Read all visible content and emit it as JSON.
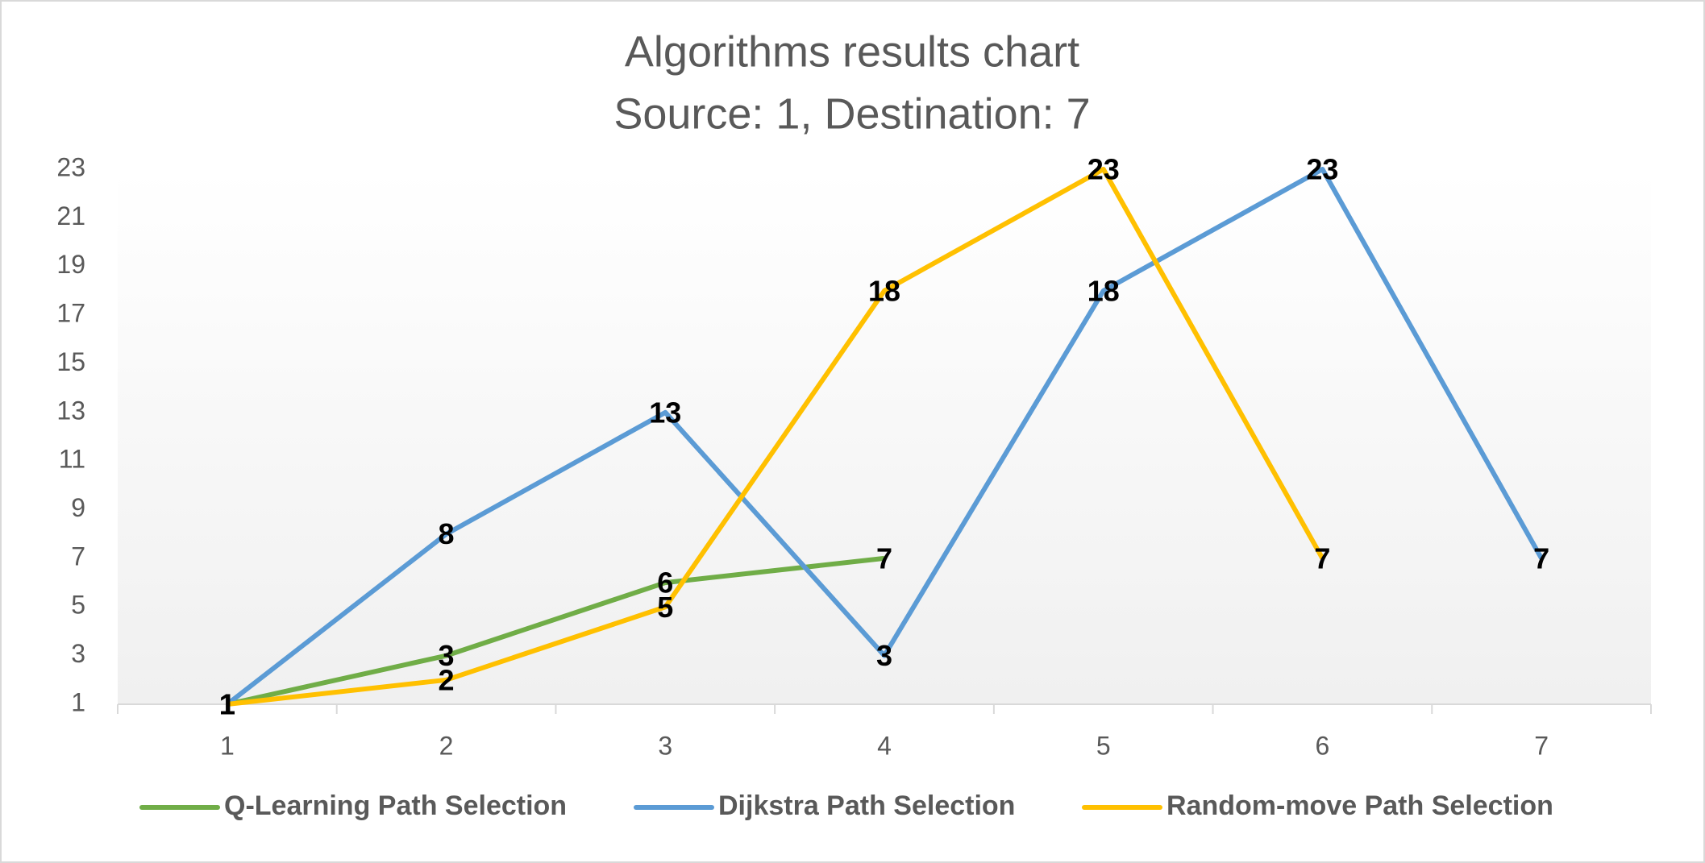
{
  "chart_data": {
    "type": "line",
    "title": "Algorithms results chart",
    "subtitle": "Source: 1, Destination: 7",
    "categories": [
      "1",
      "2",
      "3",
      "4",
      "5",
      "6",
      "7"
    ],
    "series": [
      {
        "name": "Q-Learning Path Selection",
        "color": "#70ad47",
        "values": [
          1,
          3,
          6,
          7,
          null,
          null,
          null
        ]
      },
      {
        "name": "Dijkstra Path Selection",
        "color": "#5b9bd5",
        "values": [
          1,
          8,
          13,
          3,
          18,
          23,
          7
        ]
      },
      {
        "name": "Random-move Path Selection",
        "color": "#ffc000",
        "values": [
          1,
          2,
          5,
          18,
          23,
          7,
          null
        ]
      }
    ],
    "ylim": [
      1,
      23
    ],
    "yticks": [
      1,
      3,
      5,
      7,
      9,
      11,
      13,
      15,
      17,
      19,
      21,
      23
    ],
    "grid": false,
    "data_labels": true,
    "legend": "bottom"
  }
}
